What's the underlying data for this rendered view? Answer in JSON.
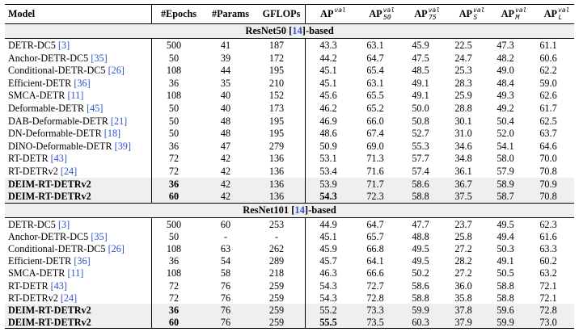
{
  "header": {
    "model": "Model",
    "epochs": "#Epochs",
    "params": "#Params",
    "gflops": "GFLOPs",
    "ap": "AP",
    "ap50": "AP",
    "ap75": "AP",
    "aps": "AP",
    "apm": "AP",
    "apl": "AP",
    "sup_val": "val",
    "sub_50": "50",
    "sub_75": "75",
    "sub_s": "S",
    "sub_m": "M",
    "sub_l": "L"
  },
  "sections": [
    {
      "title_prefix": "ResNet50 [",
      "title_cite": "14",
      "title_suffix": "]-based",
      "rows": [
        {
          "name": "DETR-DC5 ",
          "cite": "[3]",
          "epochs": "500",
          "params": "41",
          "gflops": "187",
          "ap": "43.3",
          "ap50": "63.1",
          "ap75": "45.9",
          "aps": "22.5",
          "apm": "47.3",
          "apl": "61.1",
          "bold": false,
          "shade": false
        },
        {
          "name": "Anchor-DETR-DC5 ",
          "cite": "[35]",
          "epochs": "50",
          "params": "39",
          "gflops": "172",
          "ap": "44.2",
          "ap50": "64.7",
          "ap75": "47.5",
          "aps": "24.7",
          "apm": "48.2",
          "apl": "60.6",
          "bold": false,
          "shade": false
        },
        {
          "name": "Conditional-DETR-DC5 ",
          "cite": "[26]",
          "epochs": "108",
          "params": "44",
          "gflops": "195",
          "ap": "45.1",
          "ap50": "65.4",
          "ap75": "48.5",
          "aps": "25.3",
          "apm": "49.0",
          "apl": "62.2",
          "bold": false,
          "shade": false
        },
        {
          "name": "Efficient-DETR ",
          "cite": "[36]",
          "epochs": "36",
          "params": "35",
          "gflops": "210",
          "ap": "45.1",
          "ap50": "63.1",
          "ap75": "49.1",
          "aps": "28.3",
          "apm": "48.4",
          "apl": "59.0",
          "bold": false,
          "shade": false
        },
        {
          "name": "SMCA-DETR ",
          "cite": "[11]",
          "epochs": "108",
          "params": "40",
          "gflops": "152",
          "ap": "45.6",
          "ap50": "65.5",
          "ap75": "49.1",
          "aps": "25.9",
          "apm": "49.3",
          "apl": "62.6",
          "bold": false,
          "shade": false
        },
        {
          "name": "Deformable-DETR ",
          "cite": "[45]",
          "epochs": "50",
          "params": "40",
          "gflops": "173",
          "ap": "46.2",
          "ap50": "65.2",
          "ap75": "50.0",
          "aps": "28.8",
          "apm": "49.2",
          "apl": "61.7",
          "bold": false,
          "shade": false
        },
        {
          "name": "DAB-Deformable-DETR ",
          "cite": "[21]",
          "epochs": "50",
          "params": "48",
          "gflops": "195",
          "ap": "46.9",
          "ap50": "66.0",
          "ap75": "50.8",
          "aps": "30.1",
          "apm": "50.4",
          "apl": "62.5",
          "bold": false,
          "shade": false
        },
        {
          "name": "DN-Deformable-DETR ",
          "cite": "[18]",
          "epochs": "50",
          "params": "48",
          "gflops": "195",
          "ap": "48.6",
          "ap50": "67.4",
          "ap75": "52.7",
          "aps": "31.0",
          "apm": "52.0",
          "apl": "63.7",
          "bold": false,
          "shade": false
        },
        {
          "name": "DINO-Deformable-DETR ",
          "cite": "[39]",
          "epochs": "36",
          "params": "47",
          "gflops": "279",
          "ap": "50.9",
          "ap50": "69.0",
          "ap75": "55.3",
          "aps": "34.6",
          "apm": "54.1",
          "apl": "64.6",
          "bold": false,
          "shade": false
        },
        {
          "name": "RT-DETR ",
          "cite": "[43]",
          "epochs": "72",
          "params": "42",
          "gflops": "136",
          "ap": "53.1",
          "ap50": "71.3",
          "ap75": "57.7",
          "aps": "34.8",
          "apm": "58.0",
          "apl": "70.0",
          "bold": false,
          "shade": false
        },
        {
          "name": "RT-DETRv2 ",
          "cite": "[24]",
          "epochs": "72",
          "params": "42",
          "gflops": "136",
          "ap": "53.4",
          "ap50": "71.6",
          "ap75": "57.4",
          "aps": "36.1",
          "apm": "57.9",
          "apl": "70.8",
          "bold": false,
          "shade": false
        },
        {
          "name": "DEIM-RT-DETRv2",
          "cite": "",
          "epochs": "36",
          "params": "42",
          "gflops": "136",
          "ap": "53.9",
          "ap50": "71.7",
          "ap75": "58.6",
          "aps": "36.7",
          "apm": "58.9",
          "apl": "70.9",
          "bold": true,
          "shade": true,
          "bold_ap": false
        },
        {
          "name": "DEIM-RT-DETRv2",
          "cite": "",
          "epochs": "60",
          "params": "42",
          "gflops": "136",
          "ap": "54.3",
          "ap50": "72.3",
          "ap75": "58.8",
          "aps": "37.5",
          "apm": "58.7",
          "apl": "70.8",
          "bold": true,
          "shade": true,
          "bold_ap": true
        }
      ]
    },
    {
      "title_prefix": "ResNet101 [",
      "title_cite": "14",
      "title_suffix": "]-based",
      "rows": [
        {
          "name": "DETR-DC5 ",
          "cite": "[3]",
          "epochs": "500",
          "params": "60",
          "gflops": "253",
          "ap": "44.9",
          "ap50": "64.7",
          "ap75": "47.7",
          "aps": "23.7",
          "apm": "49.5",
          "apl": "62.3",
          "bold": false,
          "shade": false
        },
        {
          "name": "Anchor-DETR-DC5 ",
          "cite": "[35]",
          "epochs": "50",
          "params": "-",
          "gflops": "-",
          "ap": "45.1",
          "ap50": "65.7",
          "ap75": "48.8",
          "aps": "25.8",
          "apm": "49.4",
          "apl": "61.6",
          "bold": false,
          "shade": false
        },
        {
          "name": "Conditional-DETR-DC5 ",
          "cite": "[26]",
          "epochs": "108",
          "params": "63",
          "gflops": "262",
          "ap": "45.9",
          "ap50": "66.8",
          "ap75": "49.5",
          "aps": "27.2",
          "apm": "50.3",
          "apl": "63.3",
          "bold": false,
          "shade": false
        },
        {
          "name": "Efficient-DETR ",
          "cite": "[36]",
          "epochs": "36",
          "params": "54",
          "gflops": "289",
          "ap": "45.7",
          "ap50": "64.1",
          "ap75": "49.5",
          "aps": "28.2",
          "apm": "49.1",
          "apl": "60.2",
          "bold": false,
          "shade": false
        },
        {
          "name": "SMCA-DETR ",
          "cite": "[11]",
          "epochs": "108",
          "params": "58",
          "gflops": "218",
          "ap": "46.3",
          "ap50": "66.6",
          "ap75": "50.2",
          "aps": "27.2",
          "apm": "50.5",
          "apl": "63.2",
          "bold": false,
          "shade": false
        },
        {
          "name": "RT-DETR ",
          "cite": "[43]",
          "epochs": "72",
          "params": "76",
          "gflops": "259",
          "ap": "54.3",
          "ap50": "72.7",
          "ap75": "58.6",
          "aps": "36.0",
          "apm": "58.8",
          "apl": "72.1",
          "bold": false,
          "shade": false
        },
        {
          "name": "RT-DETRv2 ",
          "cite": "[24]",
          "epochs": "72",
          "params": "76",
          "gflops": "259",
          "ap": "54.3",
          "ap50": "72.8",
          "ap75": "58.8",
          "aps": "35.8",
          "apm": "58.8",
          "apl": "72.1",
          "bold": false,
          "shade": false
        },
        {
          "name": "DEIM-RT-DETRv2",
          "cite": "",
          "epochs": "36",
          "params": "76",
          "gflops": "259",
          "ap": "55.2",
          "ap50": "73.3",
          "ap75": "59.9",
          "aps": "37.8",
          "apm": "59.6",
          "apl": "72.8",
          "bold": true,
          "shade": true,
          "bold_ap": false
        },
        {
          "name": "DEIM-RT-DETRv2",
          "cite": "",
          "epochs": "60",
          "params": "76",
          "gflops": "259",
          "ap": "55.5",
          "ap50": "73.5",
          "ap75": "60.3",
          "aps": "37.9",
          "apm": "59.9",
          "apl": "73.0",
          "bold": true,
          "shade": true,
          "bold_ap": true
        }
      ]
    }
  ]
}
